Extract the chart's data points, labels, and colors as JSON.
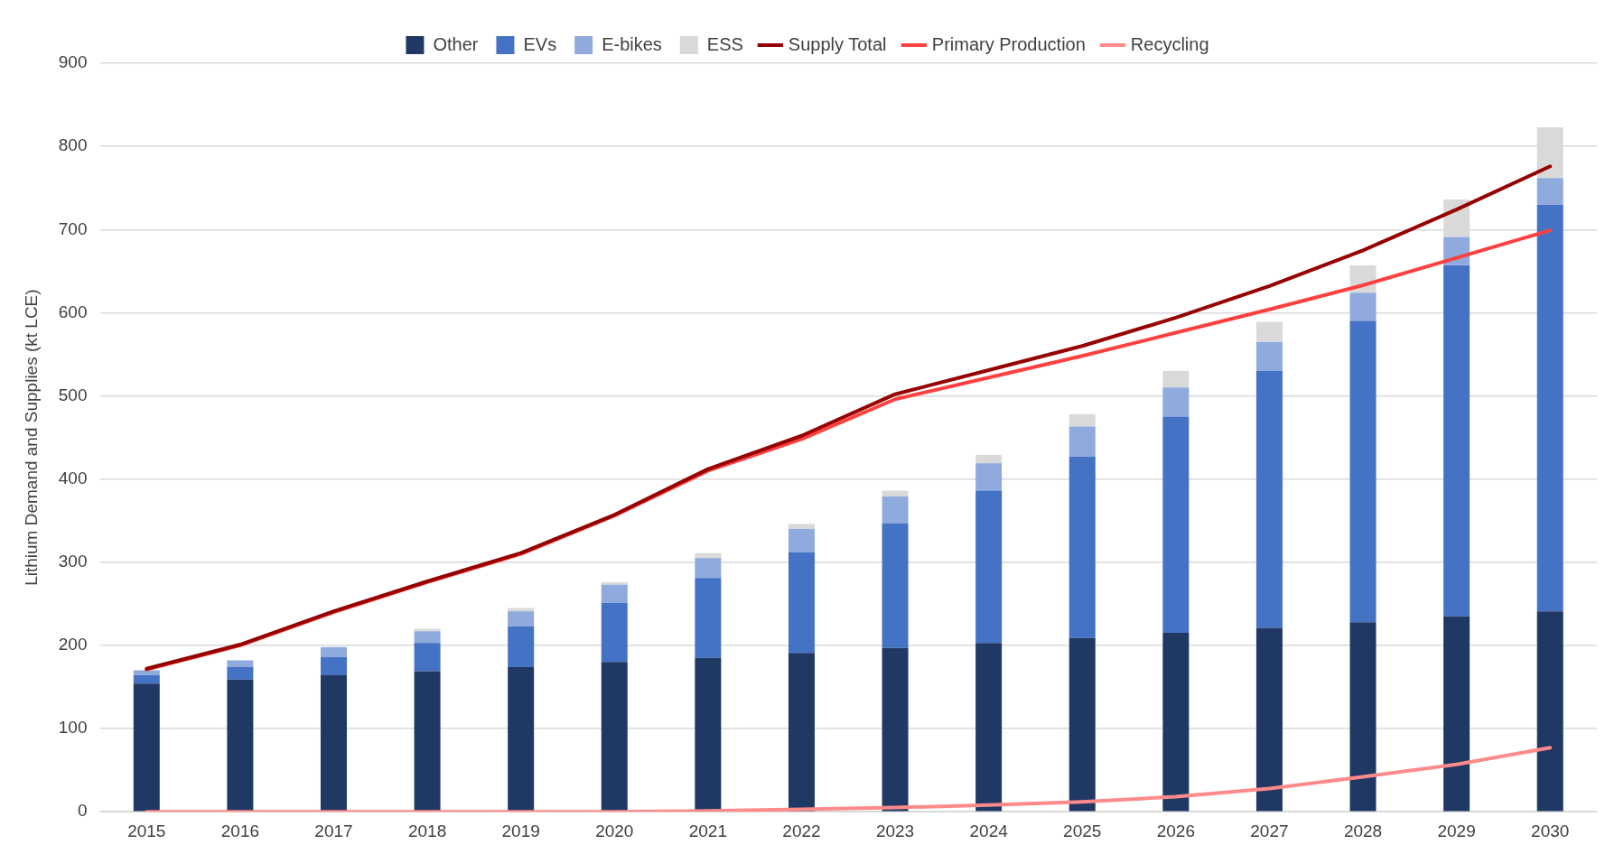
{
  "chart_data": {
    "type": "bar",
    "stacked": true,
    "ylabel": "Lithium Demand and Supplies (kt LCE)",
    "categories": [
      "2015",
      "2016",
      "2017",
      "2018",
      "2019",
      "2020",
      "2021",
      "2022",
      "2023",
      "2024",
      "2025",
      "2026",
      "2027",
      "2028",
      "2029",
      "2030"
    ],
    "ylim": [
      0,
      900
    ],
    "yticks": [
      0,
      100,
      200,
      300,
      400,
      500,
      600,
      700,
      800,
      900
    ],
    "grid": "y",
    "legend": "top",
    "marker": "none",
    "series": [
      {
        "name": "Other",
        "color": "#1f3864",
        "values": [
          154,
          159,
          164,
          169,
          174,
          180,
          185,
          191,
          197,
          203,
          209,
          215,
          221,
          228,
          235,
          241
        ]
      },
      {
        "name": "EVs",
        "color": "#4472c4",
        "values": [
          10,
          15,
          22,
          34,
          49,
          71,
          96,
          121,
          150,
          183,
          218,
          260,
          309,
          362,
          422,
          489
        ]
      },
      {
        "name": "E-bikes",
        "color": "#8faadc",
        "values": [
          6,
          8,
          12,
          14,
          18,
          22,
          24,
          28,
          32,
          33,
          36,
          35,
          35,
          34,
          34,
          32
        ]
      },
      {
        "name": "ESS",
        "color": "#d9d9d9",
        "values": [
          null,
          null,
          null,
          3,
          4,
          3,
          6,
          6,
          7,
          10,
          15,
          20,
          24,
          33,
          45,
          61
        ]
      },
      {
        "name": "Supply Total",
        "type": "line",
        "color": "#960000",
        "values": [
          172,
          201,
          241,
          277,
          311,
          357,
          412,
          452,
          502,
          531,
          560,
          594,
          632,
          675,
          724,
          776
        ]
      },
      {
        "name": "Primary Production",
        "type": "line",
        "color": "#ff4040",
        "values": [
          171,
          200,
          240,
          276,
          310,
          356,
          410,
          448,
          496,
          522,
          548,
          576,
          604,
          633,
          666,
          699
        ]
      },
      {
        "name": "Recycling",
        "type": "line",
        "color": "#ff8a8a",
        "values": [
          0,
          0,
          0,
          0,
          0,
          0,
          1,
          3,
          5,
          8,
          12,
          18,
          28,
          42,
          57,
          77
        ]
      }
    ]
  }
}
